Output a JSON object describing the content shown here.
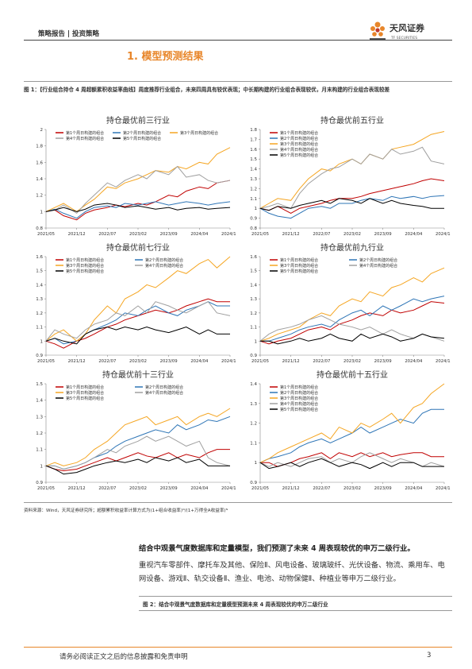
{
  "header": {
    "left": "策略报告 | 投资策略",
    "logo_name": "天风证券",
    "logo_sub": "TF SECURITIES"
  },
  "section_title": "1. 模型预测结果",
  "figure1_caption": "图 1：【行业组合持仓 4 周超额累积收益率曲线】周度推荐行业组合，未来四周具有较优表现；中长期构建的行业组合表现较优，月末构建的行业组合表现较差",
  "source_note": "资料来源：Wind，天风证券研究所；超额累积收益率计算方式为(1+组合收益率)ᴺ/(1+万得全A收益率)ᴺ",
  "paragraphs": [
    "结合中观景气度数据库和定量模型，我们预测了未来 4 周表现较优的申万二级行业。",
    "重视汽车零部件、摩托车及其他、保险Ⅱ、风电设备、玻璃玻纤、光伏设备、物流、乘用车、电网设备、游戏Ⅱ、轨交设备Ⅱ、渔业、电池、动物保健Ⅱ、种植业等申万二级行业。"
  ],
  "figure2_caption": "图 2：结合中观景气度数据库和定量模型预测未来 4 周表现较优的申万二级行业",
  "footer": {
    "disclaimer": "请务必阅读正文之后的信息披露和免责申明",
    "page": "3"
  },
  "chart_data": [
    {
      "type": "line",
      "title": "持仓最优前三行业",
      "x": [
        "2021/05",
        "2021/07",
        "2021/09",
        "2021/12",
        "2022/02",
        "2022/04",
        "2022/07",
        "2022/09",
        "2022/11",
        "2023/02",
        "2023/04",
        "2023/06",
        "2023/09",
        "2023/11",
        "2024/01",
        "2024/04",
        "2024/06",
        "2024/08",
        "2024/11"
      ],
      "xlim": [
        "2021/05",
        "2024/11"
      ],
      "xticks": [
        "2021/05",
        "2021/12",
        "2022/07",
        "2023/02",
        "2023/09",
        "2024/04",
        "2024/11"
      ],
      "ylim": [
        0.8,
        2
      ],
      "yticks": [
        0.8,
        1,
        1.2,
        1.4,
        1.6,
        1.8,
        2
      ],
      "series": [
        {
          "name": "第1个周日构建的组合",
          "color": "#c00000",
          "values": [
            1,
            1.02,
            0.95,
            0.9,
            0.98,
            1.02,
            1.05,
            1.08,
            1.06,
            1.1,
            1.08,
            1.12,
            1.2,
            1.18,
            1.25,
            1.3,
            1.28,
            1.35,
            1.38
          ]
        },
        {
          "name": "第2个周日构建的组合",
          "color": "#2e75b6",
          "values": [
            1,
            1.03,
            0.98,
            0.92,
            1.0,
            1.05,
            1.07,
            1.05,
            1.1,
            1.08,
            1.1,
            1.12,
            1.08,
            1.1,
            1.12,
            1.1,
            1.08,
            1.1,
            1.12
          ]
        },
        {
          "name": "第3个周日构建的组合",
          "color": "#f5a623",
          "values": [
            1,
            1.05,
            1.1,
            1.0,
            1.08,
            1.15,
            1.3,
            1.28,
            1.35,
            1.4,
            1.45,
            1.5,
            1.48,
            1.55,
            1.52,
            1.6,
            1.58,
            1.7,
            1.78
          ]
        },
        {
          "name": "第4个周日构建的组合",
          "color": "#a0a0a0",
          "values": [
            1,
            1.02,
            1.08,
            0.98,
            1.1,
            1.2,
            1.35,
            1.3,
            1.38,
            1.45,
            1.4,
            1.5,
            1.45,
            1.55,
            1.42,
            1.45,
            1.38,
            1.35,
            1.38
          ]
        },
        {
          "name": "第5个周日构建的组合",
          "color": "#000000",
          "values": [
            1,
            1.02,
            1.05,
            1.0,
            1.03,
            1.08,
            1.1,
            1.08,
            1.05,
            1.07,
            1.05,
            1.03,
            1.05,
            1.02,
            1.04,
            1.05,
            1.03,
            1.04,
            1.05
          ]
        }
      ]
    },
    {
      "type": "line",
      "title": "持仓最优前五行业",
      "x": [
        "2021/05",
        "2021/07",
        "2021/09",
        "2021/12",
        "2022/02",
        "2022/04",
        "2022/07",
        "2022/09",
        "2022/11",
        "2023/02",
        "2023/04",
        "2023/06",
        "2023/09",
        "2023/11",
        "2024/01",
        "2024/04",
        "2024/06",
        "2024/08",
        "2024/11"
      ],
      "xlim": [
        "2021/05",
        "2024/11"
      ],
      "xticks": [
        "2021/05",
        "2021/12",
        "2022/07",
        "2023/02",
        "2023/09",
        "2024/04",
        "2024/11"
      ],
      "ylim": [
        0.8,
        1.8
      ],
      "yticks": [
        0.8,
        0.9,
        1,
        1.1,
        1.2,
        1.3,
        1.4,
        1.5,
        1.6,
        1.7,
        1.8
      ],
      "series": [
        {
          "name": "第1个周日构建的组合",
          "color": "#c00000",
          "values": [
            1,
            0.98,
            1.02,
            0.95,
            1.0,
            1.02,
            1.05,
            1.08,
            1.1,
            1.1,
            1.12,
            1.15,
            1.18,
            1.2,
            1.22,
            1.25,
            1.28,
            1.3,
            1.28
          ]
        },
        {
          "name": "第2个周日构建的组合",
          "color": "#2e75b6",
          "values": [
            1,
            0.95,
            0.92,
            0.9,
            0.95,
            1.0,
            1.02,
            1.0,
            1.05,
            1.05,
            1.08,
            1.1,
            1.08,
            1.12,
            1.1,
            1.12,
            1.1,
            1.12,
            1.13
          ]
        },
        {
          "name": "第3个周日构建的组合",
          "color": "#f5a623",
          "values": [
            1,
            1.05,
            1.1,
            1.08,
            1.2,
            1.3,
            1.4,
            1.38,
            1.45,
            1.5,
            1.45,
            1.55,
            1.5,
            1.6,
            1.62,
            1.65,
            1.7,
            1.75,
            1.78
          ]
        },
        {
          "name": "第4个周日构建的组合",
          "color": "#a0a0a0",
          "values": [
            1,
            1.02,
            1.05,
            1.0,
            1.15,
            1.25,
            1.35,
            1.4,
            1.42,
            1.5,
            1.45,
            1.55,
            1.5,
            1.6,
            1.55,
            1.58,
            1.62,
            1.48,
            1.45
          ]
        },
        {
          "name": "第5个周日构建的组合",
          "color": "#000000",
          "values": [
            1,
            0.98,
            1.02,
            1.0,
            1.03,
            1.05,
            1.08,
            1.05,
            1.1,
            1.08,
            1.05,
            1.1,
            1.05,
            1.08,
            1.05,
            1.03,
            1.02,
            1.0,
            1.0
          ]
        }
      ]
    },
    {
      "type": "line",
      "title": "持仓最优前七行业",
      "x": [
        "2021/05",
        "2021/07",
        "2021/09",
        "2021/12",
        "2022/02",
        "2022/04",
        "2022/07",
        "2022/09",
        "2022/11",
        "2023/02",
        "2023/04",
        "2023/06",
        "2023/09",
        "2023/11",
        "2024/01",
        "2024/04",
        "2024/06",
        "2024/08",
        "2024/11"
      ],
      "xlim": [
        "2021/05",
        "2024/11"
      ],
      "xticks": [
        "2021/05",
        "2021/12",
        "2022/07",
        "2023/02",
        "2023/09",
        "2024/04",
        "2024/11"
      ],
      "ylim": [
        0.9,
        1.6
      ],
      "yticks": [
        0.9,
        1,
        1.1,
        1.2,
        1.3,
        1.4,
        1.5,
        1.6
      ],
      "series": [
        {
          "name": "第1个周日构建的组合",
          "color": "#c00000",
          "values": [
            1,
            0.98,
            0.95,
            1.0,
            1.02,
            1.05,
            1.1,
            1.12,
            1.15,
            1.18,
            1.2,
            1.22,
            1.2,
            1.22,
            1.25,
            1.28,
            1.3,
            1.28,
            1.28
          ]
        },
        {
          "name": "第2个周日构建的组合",
          "color": "#2e75b6",
          "values": [
            1,
            1.02,
            0.98,
            1.0,
            1.05,
            1.08,
            1.12,
            1.15,
            1.2,
            1.18,
            1.22,
            1.25,
            1.2,
            1.18,
            1.22,
            1.25,
            1.28,
            1.25,
            1.25
          ]
        },
        {
          "name": "第3个周日构建的组合",
          "color": "#f5a623",
          "values": [
            1,
            1.05,
            1.08,
            1.0,
            1.05,
            1.15,
            1.25,
            1.2,
            1.3,
            1.35,
            1.4,
            1.38,
            1.45,
            1.5,
            1.48,
            1.55,
            1.58,
            1.52,
            1.6
          ]
        },
        {
          "name": "第4个周日构建的组合",
          "color": "#a0a0a0",
          "values": [
            1,
            1.08,
            1.05,
            1.02,
            1.08,
            1.12,
            1.15,
            1.2,
            1.18,
            1.25,
            1.2,
            1.28,
            1.25,
            1.22,
            1.2,
            1.25,
            1.28,
            1.2,
            1.18
          ]
        },
        {
          "name": "第5个周日构建的组合",
          "color": "#000000",
          "values": [
            1,
            1.02,
            1.0,
            0.98,
            1.05,
            1.08,
            1.1,
            1.08,
            1.1,
            1.08,
            1.1,
            1.08,
            1.06,
            1.08,
            1.1,
            1.05,
            1.08,
            1.05,
            1.05
          ]
        }
      ]
    },
    {
      "type": "line",
      "title": "持仓最优前九行业",
      "x": [
        "2021/05",
        "2021/07",
        "2021/09",
        "2021/12",
        "2022/02",
        "2022/04",
        "2022/07",
        "2022/09",
        "2022/11",
        "2023/02",
        "2023/04",
        "2023/06",
        "2023/09",
        "2023/11",
        "2024/01",
        "2024/04",
        "2024/06",
        "2024/08",
        "2024/11"
      ],
      "xlim": [
        "2021/05",
        "2024/11"
      ],
      "xticks": [
        "2021/05",
        "2021/12",
        "2022/07",
        "2023/02",
        "2023/09",
        "2024/04",
        "2024/11"
      ],
      "ylim": [
        0.9,
        1.6
      ],
      "yticks": [
        0.9,
        1,
        1.1,
        1.2,
        1.3,
        1.4,
        1.5,
        1.6
      ],
      "series": [
        {
          "name": "第1个周日构建的组合",
          "color": "#c00000",
          "values": [
            1,
            0.98,
            1.0,
            1.02,
            1.05,
            1.08,
            1.1,
            1.08,
            1.12,
            1.15,
            1.18,
            1.2,
            1.18,
            1.22,
            1.2,
            1.22,
            1.25,
            1.28,
            1.27
          ]
        },
        {
          "name": "第2个周日构建的组合",
          "color": "#2e75b6",
          "values": [
            1,
            1.0,
            1.02,
            1.05,
            1.08,
            1.1,
            1.12,
            1.1,
            1.15,
            1.2,
            1.22,
            1.18,
            1.25,
            1.22,
            1.25,
            1.3,
            1.28,
            1.3,
            1.32
          ]
        },
        {
          "name": "第3个周日构建的组合",
          "color": "#f5a623",
          "values": [
            1,
            1.02,
            1.05,
            1.08,
            1.1,
            1.15,
            1.2,
            1.18,
            1.25,
            1.3,
            1.28,
            1.35,
            1.32,
            1.38,
            1.4,
            1.45,
            1.42,
            1.48,
            1.52
          ]
        },
        {
          "name": "第4个周日构建的组合",
          "color": "#a0a0a0",
          "values": [
            1,
            1.05,
            1.08,
            1.1,
            1.12,
            1.15,
            1.18,
            1.15,
            1.12,
            1.1,
            1.08,
            1.1,
            1.05,
            1.08,
            1.05,
            1.02,
            1.05,
            1.03,
            1.0
          ]
        },
        {
          "name": "第5个周日构建的组合",
          "color": "#000000",
          "values": [
            1,
            1.0,
            0.98,
            1.0,
            1.02,
            1.0,
            1.02,
            1.05,
            1.02,
            1.0,
            1.05,
            1.02,
            1.05,
            1.03,
            1.0,
            1.02,
            1.05,
            1.03,
            1.02
          ]
        }
      ]
    },
    {
      "type": "line",
      "title": "持仓最优前十三行业",
      "x": [
        "2021/05",
        "2021/07",
        "2021/09",
        "2021/12",
        "2022/02",
        "2022/04",
        "2022/07",
        "2022/09",
        "2022/11",
        "2023/02",
        "2023/04",
        "2023/06",
        "2023/09",
        "2023/11",
        "2024/01",
        "2024/04",
        "2024/06",
        "2024/08",
        "2024/11"
      ],
      "xlim": [
        "2021/05",
        "2024/11"
      ],
      "xticks": [
        "2021/05",
        "2021/12",
        "2022/07",
        "2023/02",
        "2023/09",
        "2024/04",
        "2024/11"
      ],
      "ylim": [
        0.9,
        1.5
      ],
      "yticks": [
        0.9,
        1,
        1.1,
        1.2,
        1.3,
        1.4,
        1.5
      ],
      "series": [
        {
          "name": "第1个周日构建的组合",
          "color": "#c00000",
          "values": [
            1,
            0.98,
            0.97,
            0.98,
            1.0,
            1.02,
            1.05,
            1.03,
            1.05,
            1.08,
            1.06,
            1.05,
            1.08,
            1.05,
            1.07,
            1.05,
            1.08,
            1.1,
            1.1
          ]
        },
        {
          "name": "第2个周日构建的组合",
          "color": "#2e75b6",
          "values": [
            1,
            1.0,
            0.98,
            1.0,
            1.02,
            1.05,
            1.08,
            1.12,
            1.15,
            1.18,
            1.2,
            1.22,
            1.2,
            1.25,
            1.22,
            1.25,
            1.28,
            1.27,
            1.3
          ]
        },
        {
          "name": "第3个周日构建的组合",
          "color": "#f5a623",
          "values": [
            1,
            1.02,
            1.0,
            1.02,
            1.05,
            1.1,
            1.15,
            1.2,
            1.25,
            1.28,
            1.3,
            1.25,
            1.28,
            1.3,
            1.25,
            1.3,
            1.32,
            1.3,
            1.35
          ]
        },
        {
          "name": "第4个周日构建的组合",
          "color": "#a0a0a0",
          "values": [
            1,
            1.0,
            0.98,
            1.0,
            1.02,
            1.05,
            1.1,
            1.08,
            1.12,
            1.15,
            1.18,
            1.15,
            1.18,
            1.15,
            1.12,
            1.15,
            1.05,
            1.02,
            1.0
          ]
        },
        {
          "name": "第5个周日构建的组合",
          "color": "#000000",
          "values": [
            1,
            0.98,
            0.95,
            0.96,
            0.98,
            1.0,
            1.02,
            1.03,
            1.02,
            1.04,
            1.02,
            1.05,
            1.03,
            1.05,
            1.02,
            1.04,
            1.0,
            1.0,
            1.0
          ]
        }
      ]
    },
    {
      "type": "line",
      "title": "持仓最优前十五行业",
      "x": [
        "2021/05",
        "2021/07",
        "2021/09",
        "2021/12",
        "2022/02",
        "2022/04",
        "2022/07",
        "2022/09",
        "2022/11",
        "2023/02",
        "2023/04",
        "2023/06",
        "2023/09",
        "2023/11",
        "2024/01",
        "2024/04",
        "2024/06",
        "2024/08",
        "2024/11"
      ],
      "xlim": [
        "2021/05",
        "2024/11"
      ],
      "xticks": [
        "2021/05",
        "2021/12",
        "2022/07",
        "2023/02",
        "2023/09",
        "2024/04",
        "2024/11"
      ],
      "ylim": [
        0.9,
        1.4
      ],
      "yticks": [
        0.9,
        1,
        1.1,
        1.2,
        1.3,
        1.4
      ],
      "series": [
        {
          "name": "第1个周日构建的组合",
          "color": "#c00000",
          "values": [
            1,
            1.0,
            0.98,
            1.0,
            1.02,
            1.03,
            1.05,
            1.02,
            1.05,
            1.03,
            1.05,
            1.03,
            1.05,
            1.03,
            1.04,
            1.05,
            1.05,
            1.03,
            1.03
          ]
        },
        {
          "name": "第2个周日构建的组合",
          "color": "#2e75b6",
          "values": [
            1,
            1.02,
            1.03,
            1.05,
            1.08,
            1.1,
            1.12,
            1.1,
            1.12,
            1.15,
            1.18,
            1.15,
            1.18,
            1.2,
            1.22,
            1.2,
            1.25,
            1.27,
            1.27
          ]
        },
        {
          "name": "第3个周日构建的组合",
          "color": "#f5a623",
          "values": [
            1,
            1.02,
            1.05,
            1.08,
            1.1,
            1.12,
            1.15,
            1.12,
            1.18,
            1.15,
            1.2,
            1.18,
            1.22,
            1.25,
            1.2,
            1.28,
            1.3,
            1.35,
            1.4
          ]
        },
        {
          "name": "第4个周日构建的组合",
          "color": "#a0a0a0",
          "values": [
            1,
            0.98,
            1.0,
            0.98,
            1.0,
            1.02,
            1.03,
            1.0,
            1.02,
            1.0,
            1.03,
            1.05,
            1.02,
            1.0,
            1.02,
            1.0,
            0.98,
            1.0,
            0.98
          ]
        },
        {
          "name": "第5个周日构建的组合",
          "color": "#000000",
          "values": [
            1,
            0.97,
            0.98,
            1.0,
            0.98,
            1.0,
            1.02,
            1.0,
            0.98,
            1.0,
            0.99,
            0.97,
            1.0,
            0.98,
            1.0,
            1.0,
            0.98,
            0.98,
            0.98
          ]
        }
      ]
    }
  ]
}
